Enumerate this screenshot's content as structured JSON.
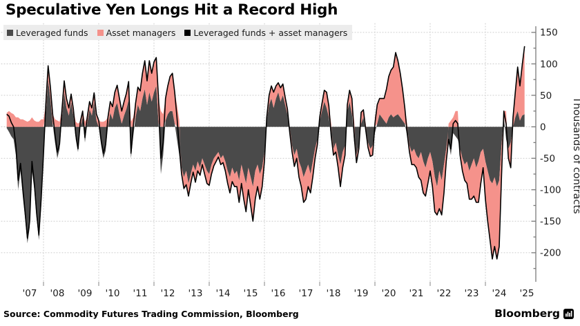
{
  "title": "Speculative Yen Longs Hit a Record High",
  "legend": [
    {
      "label": "Leveraged funds",
      "color": "#4a4a4a",
      "type": "area"
    },
    {
      "label": "Asset managers",
      "color": "#f5928b",
      "type": "area"
    },
    {
      "label": "Leveraged funds + asset managers",
      "color": "#000000",
      "type": "line"
    }
  ],
  "source": "Source: Commodity Futures Trading Commission, Bloomberg",
  "brand": "Bloomberg",
  "colors": {
    "background": "#ffffff",
    "legend_background": "#ececec",
    "gridline": "#c9c9c9",
    "axis": "#7a7a7a",
    "text": "#1a1a1a"
  },
  "chart_data": {
    "type": "area",
    "subtype": "diverging-stacked-with-total-line",
    "title": "Speculative Yen Longs Hit a Record High",
    "xlabel": "",
    "ylabel": "Thousands of contracts",
    "ylim": [
      -245,
      160
    ],
    "y_ticks": [
      150,
      100,
      50,
      0,
      -50,
      -100,
      -150,
      -200
    ],
    "y_minor_ticks": [
      125,
      75,
      25,
      -25,
      -75,
      -125,
      -175,
      -225
    ],
    "x_tick_labels": [
      "'07",
      "'08",
      "'09",
      "'10",
      "'11",
      "'12",
      "'13",
      "'14",
      "'15",
      "'16",
      "'17",
      "'18",
      "'19",
      "'20",
      "'21",
      "'22",
      "'23",
      "'24",
      "'25"
    ],
    "x_tick_years": [
      2007,
      2008,
      2009,
      2010,
      2011,
      2012,
      2013,
      2014,
      2015,
      2016,
      2017,
      2018,
      2019,
      2020,
      2021,
      2022,
      2023,
      2024,
      2025
    ],
    "grid_years": [
      2008,
      2010,
      2012,
      2014,
      2016,
      2018,
      2020,
      2022,
      2024
    ],
    "grid": true,
    "legend_position": "top-left",
    "x_start": {
      "year": 2006,
      "month": 9
    },
    "x_step_months": 1,
    "units": "thousands of contracts",
    "series": [
      {
        "name": "Leveraged funds",
        "color": "#4a4a4a",
        "values": [
          -2,
          -8,
          -15,
          -20,
          -45,
          -100,
          -70,
          -110,
          -145,
          -185,
          -160,
          -70,
          -100,
          -145,
          -180,
          -125,
          -55,
          20,
          75,
          45,
          5,
          -25,
          -50,
          -35,
          15,
          55,
          30,
          18,
          40,
          18,
          -20,
          -40,
          0,
          15,
          -25,
          5,
          28,
          18,
          40,
          10,
          0,
          -28,
          -50,
          -38,
          0,
          22,
          12,
          30,
          38,
          20,
          5,
          18,
          28,
          42,
          -50,
          -15,
          15,
          35,
          25,
          45,
          60,
          35,
          55,
          40,
          55,
          65,
          5,
          -75,
          -45,
          10,
          20,
          25,
          25,
          5,
          -20,
          -45,
          -65,
          -80,
          -70,
          -90,
          -75,
          -60,
          -70,
          -55,
          -65,
          -50,
          -60,
          -70,
          -75,
          -60,
          -50,
          -45,
          -40,
          -50,
          -45,
          -55,
          -70,
          -80,
          -65,
          -75,
          -70,
          -85,
          -60,
          -75,
          -90,
          -65,
          -80,
          -95,
          -70,
          -60,
          -75,
          -65,
          -40,
          10,
          35,
          45,
          30,
          45,
          55,
          40,
          50,
          35,
          20,
          -10,
          -30,
          -45,
          -35,
          -55,
          -65,
          -80,
          -70,
          -60,
          -75,
          -55,
          -35,
          -20,
          10,
          25,
          40,
          30,
          15,
          -20,
          -35,
          -25,
          -45,
          -60,
          -40,
          -30,
          25,
          40,
          20,
          -25,
          -45,
          -30,
          5,
          15,
          -10,
          -25,
          -35,
          -30,
          -10,
          5,
          20,
          15,
          10,
          5,
          15,
          20,
          15,
          18,
          20,
          15,
          10,
          5,
          -15,
          -30,
          -40,
          -35,
          -45,
          -50,
          -40,
          -55,
          -65,
          -50,
          -40,
          -55,
          -80,
          -95,
          -70,
          -85,
          -60,
          -35,
          -25,
          -45,
          -10,
          -15,
          -20,
          -35,
          -50,
          -60,
          -55,
          -70,
          -60,
          -50,
          -65,
          -55,
          -40,
          -35,
          -55,
          -70,
          -85,
          -90,
          -80,
          -95,
          -85,
          -30,
          15,
          -20,
          -35,
          -25,
          0,
          15,
          25,
          10,
          18,
          20
        ]
      },
      {
        "name": "Asset managers",
        "color": "#f5928b",
        "values": [
          22,
          25,
          22,
          20,
          15,
          15,
          12,
          12,
          10,
          8,
          10,
          15,
          10,
          8,
          8,
          12,
          12,
          15,
          22,
          18,
          15,
          12,
          10,
          8,
          12,
          18,
          15,
          12,
          12,
          10,
          8,
          5,
          8,
          10,
          8,
          10,
          12,
          12,
          14,
          10,
          10,
          8,
          8,
          10,
          15,
          18,
          20,
          25,
          28,
          25,
          20,
          22,
          25,
          30,
          8,
          15,
          22,
          28,
          32,
          40,
          45,
          38,
          50,
          45,
          48,
          45,
          38,
          25,
          20,
          35,
          45,
          55,
          60,
          50,
          35,
          10,
          -10,
          -18,
          -22,
          -20,
          -15,
          -12,
          -18,
          -15,
          -12,
          -10,
          -15,
          -20,
          -18,
          -15,
          -12,
          -10,
          -8,
          -10,
          -12,
          -15,
          -20,
          -25,
          -22,
          -20,
          -25,
          -35,
          -30,
          -40,
          -45,
          -35,
          -45,
          -55,
          -45,
          -35,
          -40,
          -30,
          -15,
          5,
          15,
          20,
          25,
          20,
          15,
          22,
          18,
          12,
          8,
          0,
          -10,
          -18,
          -15,
          -25,
          -30,
          -40,
          -45,
          -35,
          -30,
          -25,
          -15,
          -8,
          5,
          12,
          18,
          25,
          18,
          5,
          -10,
          -15,
          -20,
          -35,
          -25,
          -15,
          10,
          18,
          25,
          10,
          -12,
          -5,
          18,
          12,
          5,
          -8,
          -12,
          -15,
          15,
          30,
          25,
          30,
          35,
          55,
          65,
          70,
          80,
          100,
          85,
          70,
          50,
          25,
          5,
          -10,
          -20,
          -25,
          -20,
          -30,
          -45,
          -50,
          -45,
          -40,
          -30,
          -40,
          -55,
          -45,
          -60,
          -55,
          -45,
          -20,
          5,
          10,
          15,
          25,
          25,
          -10,
          -20,
          -25,
          -35,
          -45,
          -55,
          -60,
          -55,
          -65,
          -50,
          -30,
          -60,
          -80,
          -95,
          -120,
          -110,
          -115,
          -105,
          -50,
          10,
          25,
          -15,
          -40,
          15,
          40,
          70,
          55,
          80,
          108
        ]
      },
      {
        "name": "Leveraged funds + asset managers",
        "color": "#000000",
        "derived": "sum"
      }
    ]
  }
}
